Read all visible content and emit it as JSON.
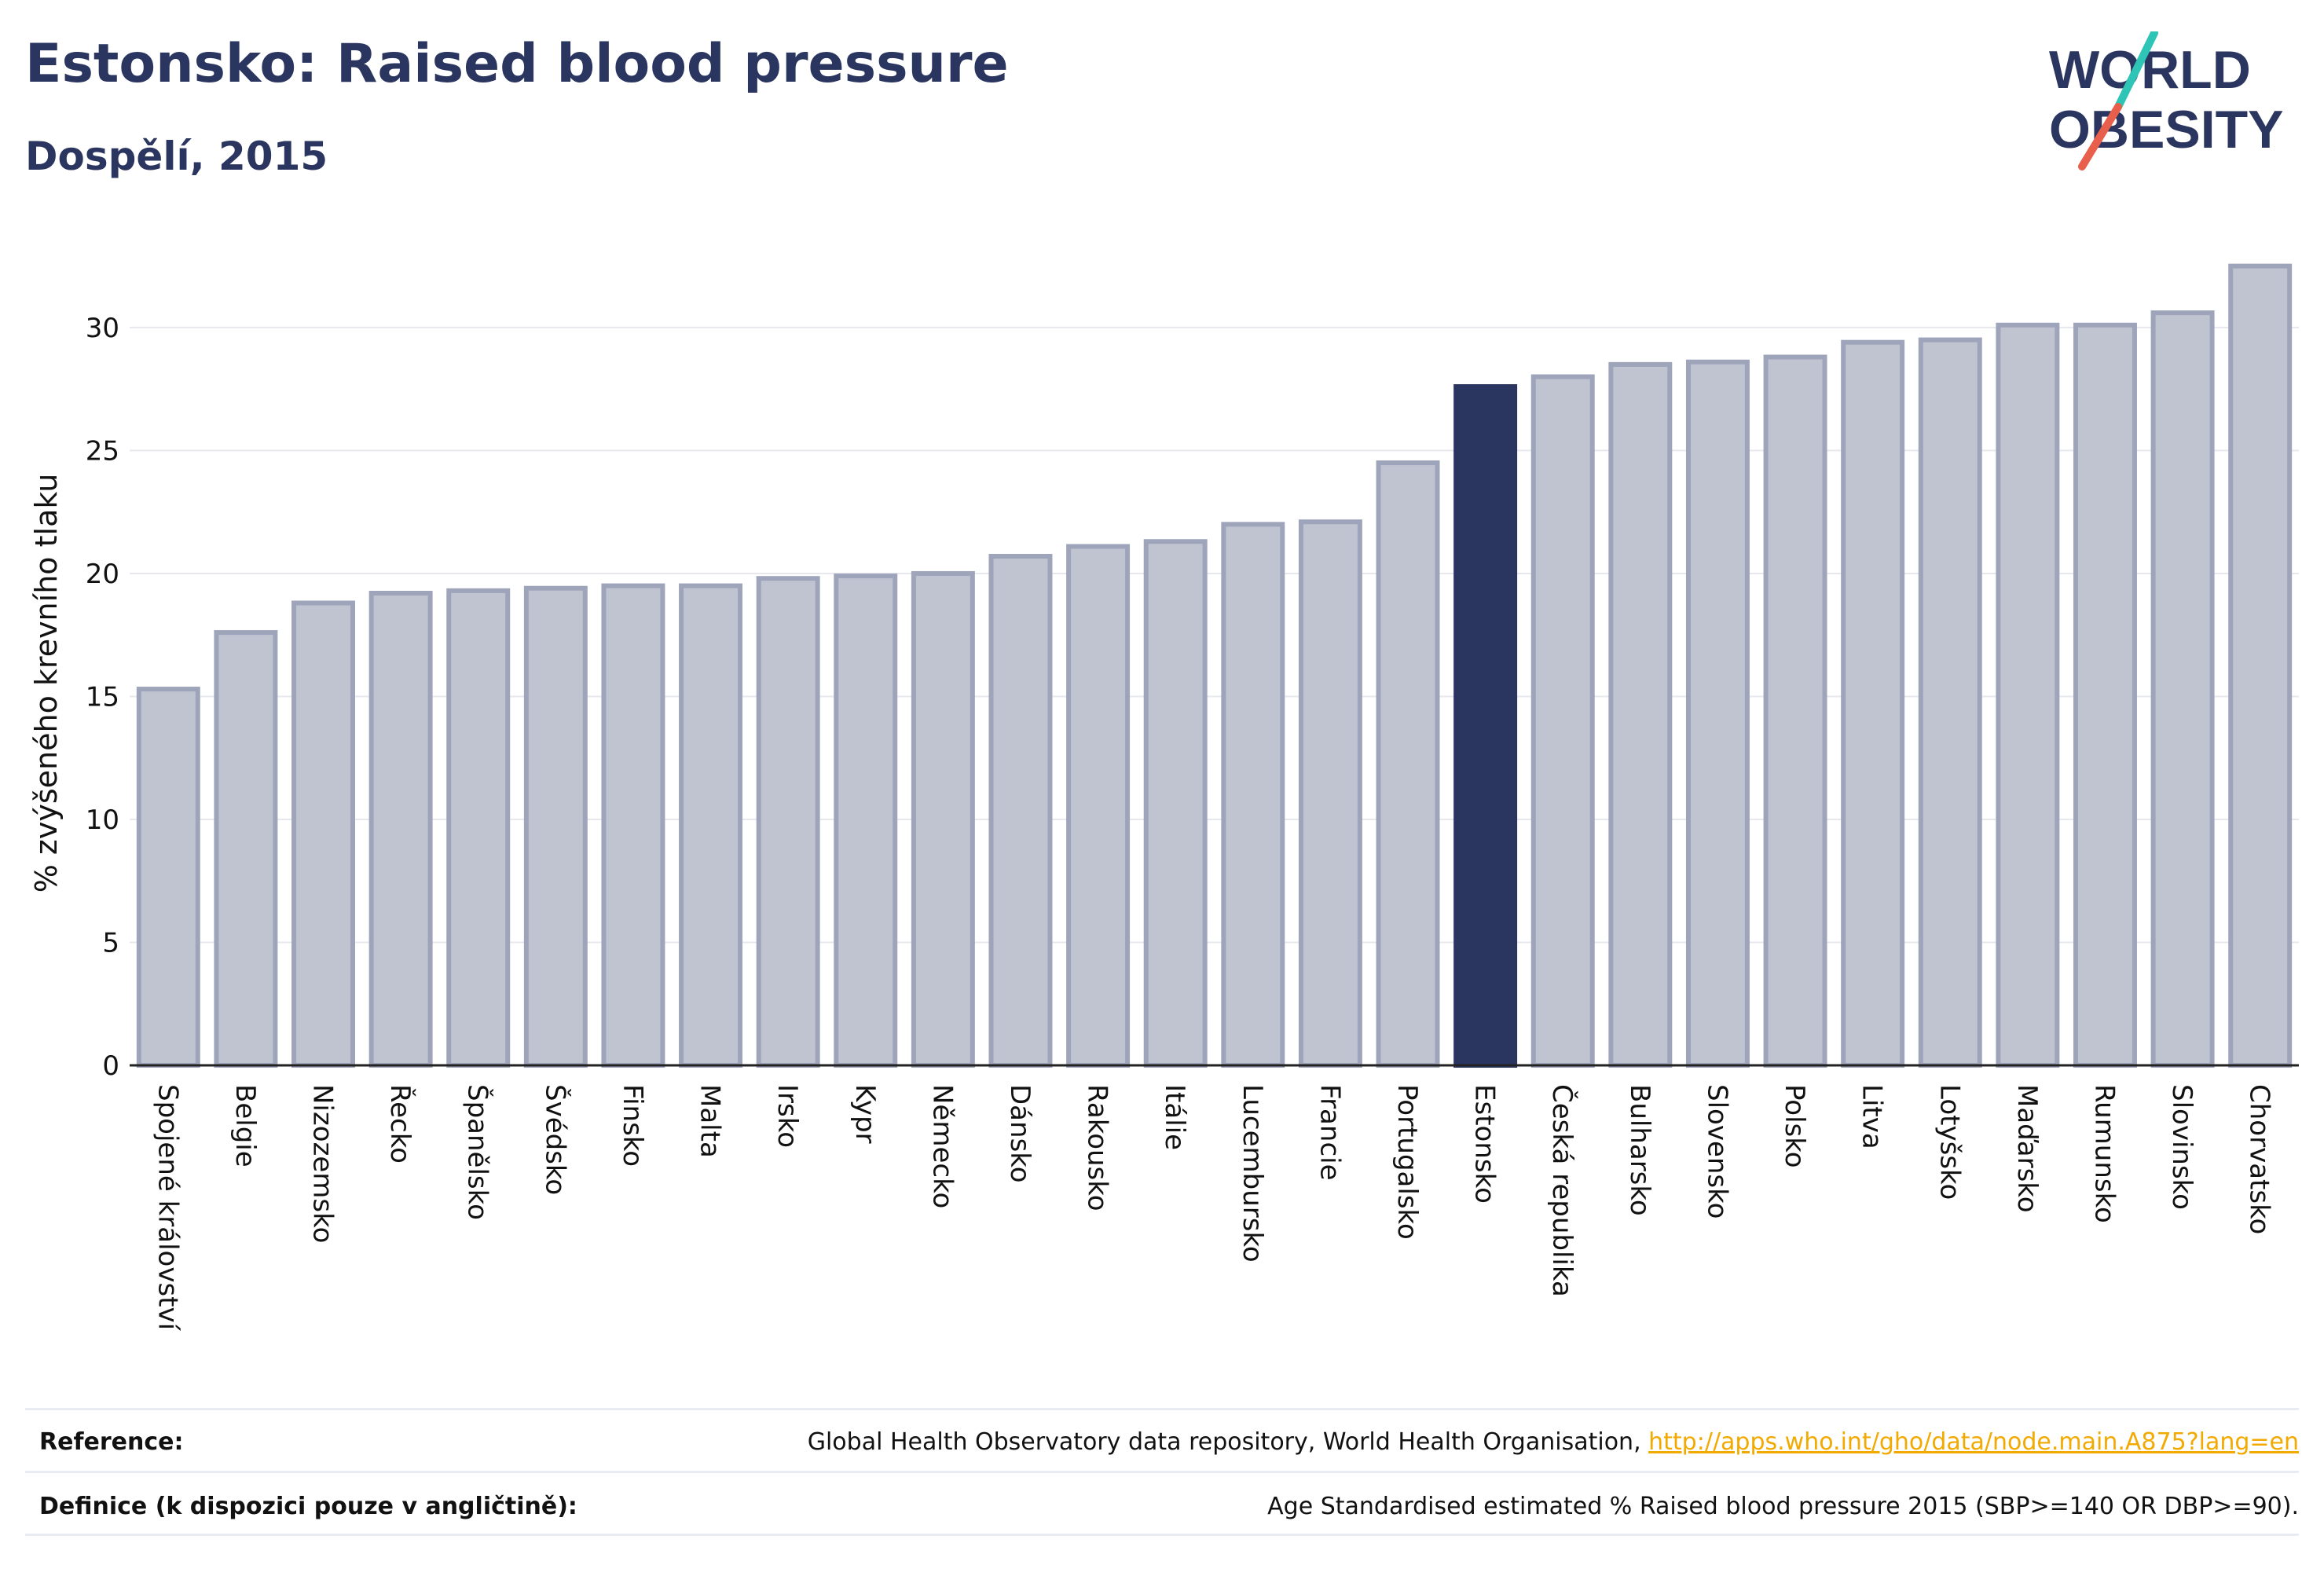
{
  "header": {
    "title": "Estonsko: Raised blood pressure",
    "subtitle": "Dospělí, 2015"
  },
  "logo": {
    "line1": "WORLD",
    "line2": "OBESITY"
  },
  "colors": {
    "highlight": "#2a3560",
    "bar_fill": "#c0c4d1",
    "bar_stroke": "#9ea4ba",
    "title": "#2a3560",
    "logo_slash": [
      "#2ec4b6",
      "#e8604c"
    ],
    "link": "#f2a900"
  },
  "chart_data": {
    "type": "bar",
    "title": "Estonsko: Raised blood pressure",
    "subtitle": "Dospělí, 2015",
    "xlabel": "",
    "ylabel": "% zvýšeného krevního tlaku",
    "ylim": [
      0,
      33
    ],
    "yticks": [
      0,
      5,
      10,
      15,
      20,
      25,
      30
    ],
    "grid": true,
    "highlight": "Estonsko",
    "categories": [
      "Spojené království",
      "Belgie",
      "Nizozemsko",
      "Řecko",
      "Španělsko",
      "Švédsko",
      "Finsko",
      "Malta",
      "Irsko",
      "Kypr",
      "Německo",
      "Dánsko",
      "Rakousko",
      "Itálie",
      "Lucembursko",
      "Francie",
      "Portugalsko",
      "Estonsko",
      "Česká republika",
      "Bulharsko",
      "Slovensko",
      "Polsko",
      "Litva",
      "Lotyšsko",
      "Maďarsko",
      "Rumunsko",
      "Slovinsko",
      "Chorvatsko"
    ],
    "values": [
      15.3,
      17.6,
      18.8,
      19.2,
      19.3,
      19.4,
      19.5,
      19.5,
      19.8,
      19.9,
      20.0,
      20.7,
      21.1,
      21.3,
      22.0,
      22.1,
      24.5,
      27.6,
      28.0,
      28.5,
      28.6,
      28.8,
      29.4,
      29.5,
      30.1,
      30.1,
      30.6,
      32.5
    ]
  },
  "footer": {
    "reference_label": "Reference:",
    "reference_text": "Global Health Observatory data repository, World Health Organisation, ",
    "reference_link": "http://apps.who.int/gho/data/node.main.A875?lang=en",
    "definition_label": "Definice (k dispozici pouze v angličtině):",
    "definition_text": "Age Standardised estimated % Raised blood pressure 2015 (SBP>=140 OR DBP>=90)."
  }
}
